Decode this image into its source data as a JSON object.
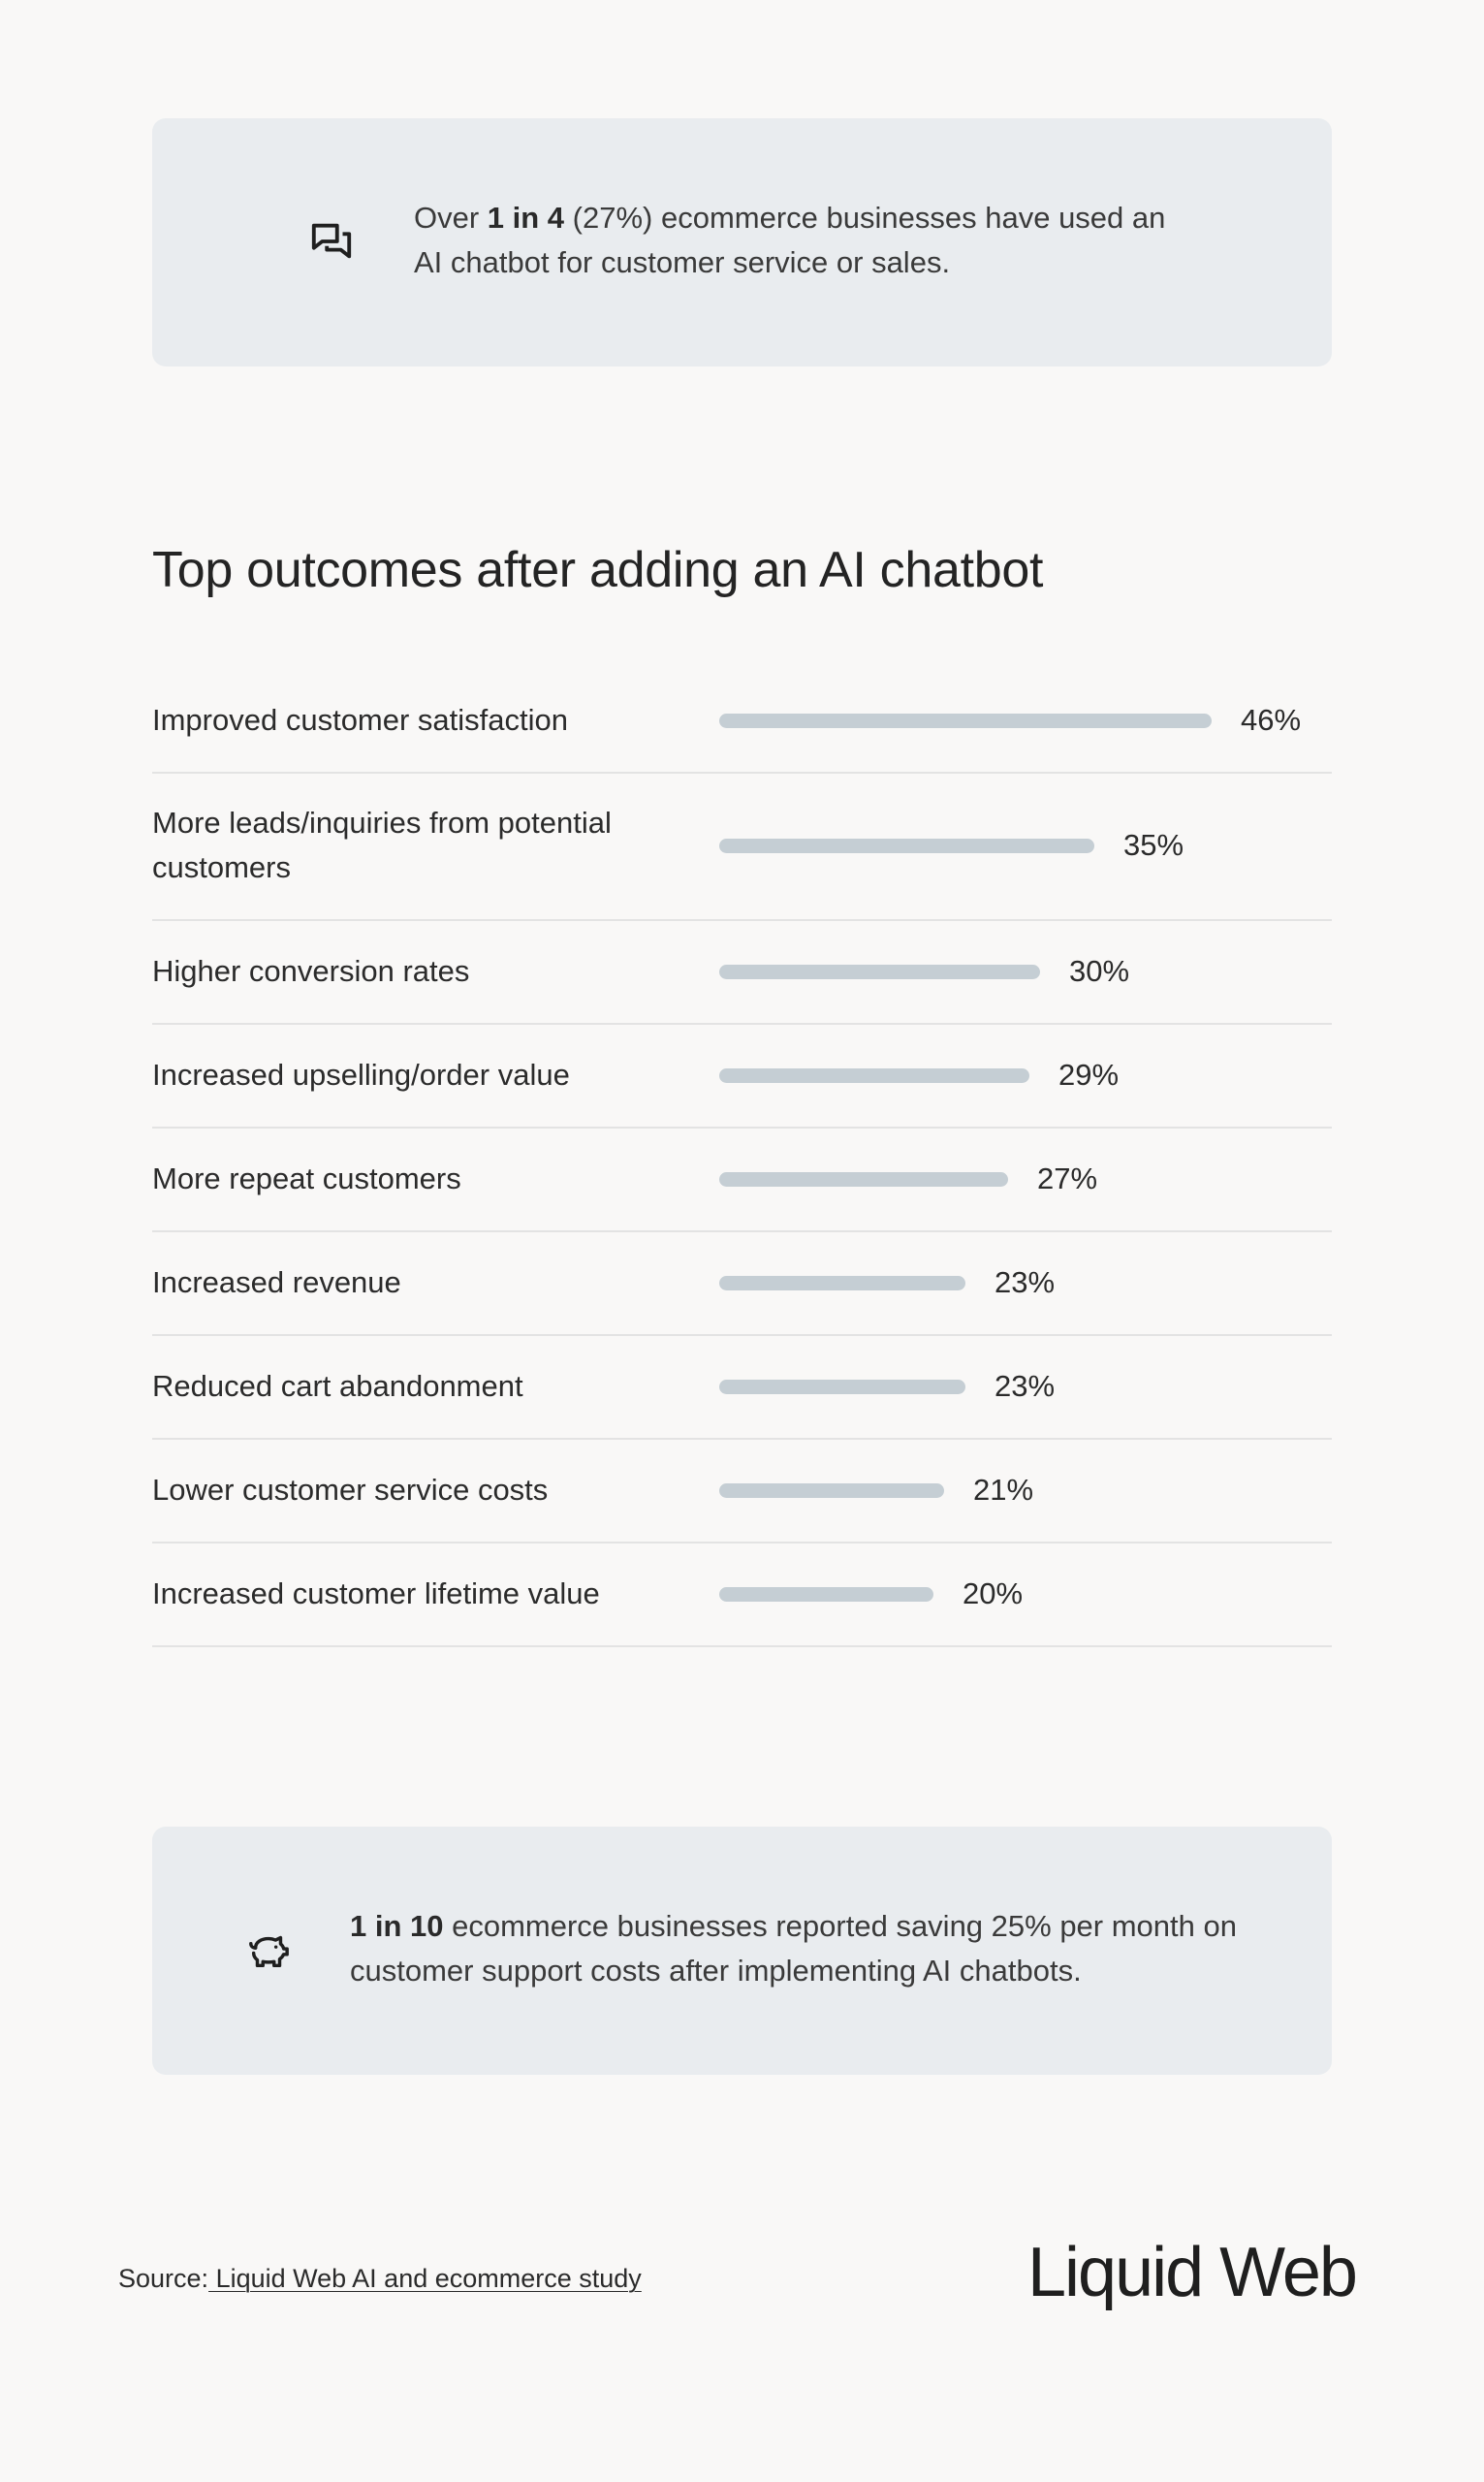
{
  "callout_top": {
    "prefix": "Over ",
    "highlight": "1 in 4",
    "suffix": " (27%) ecommerce businesses have used an AI chatbot for customer service or sales.",
    "icon": "chat-bubbles-icon"
  },
  "section_title": "Top outcomes after adding an AI chatbot",
  "chart_data": {
    "type": "bar",
    "orientation": "horizontal",
    "categories": [
      "Improved customer satisfaction",
      "More leads/inquiries from potential customers",
      "Higher conversion rates",
      "Increased upselling/order value",
      "More repeat customers",
      "Increased revenue",
      "Reduced cart abandonment",
      "Lower customer service costs",
      "Increased customer lifetime value"
    ],
    "values": [
      46,
      35,
      30,
      29,
      27,
      23,
      23,
      21,
      20
    ],
    "value_labels": [
      "46%",
      "35%",
      "30%",
      "29%",
      "27%",
      "23%",
      "23%",
      "21%",
      "20%"
    ],
    "title": "Top outcomes after adding an AI chatbot",
    "xlabel": "",
    "ylabel": "",
    "xlim": [
      0,
      46
    ],
    "grid": false,
    "bar_color": "#c5ced4"
  },
  "callout_bottom": {
    "highlight": "1 in 10",
    "suffix": " ecommerce businesses reported saving 25% per month on customer support costs after implementing AI chatbots.",
    "icon": "piggy-bank-icon"
  },
  "footer": {
    "source_prefix": "Source:",
    "source_link": " Liquid Web AI and ecommerce study",
    "brand": "Liquid Web"
  },
  "colors": {
    "background": "#f9f8f7",
    "callout_bg": "#e9ecef",
    "bar": "#c5ced4",
    "text": "#2b2b2b",
    "divider": "#e3e3e3"
  }
}
